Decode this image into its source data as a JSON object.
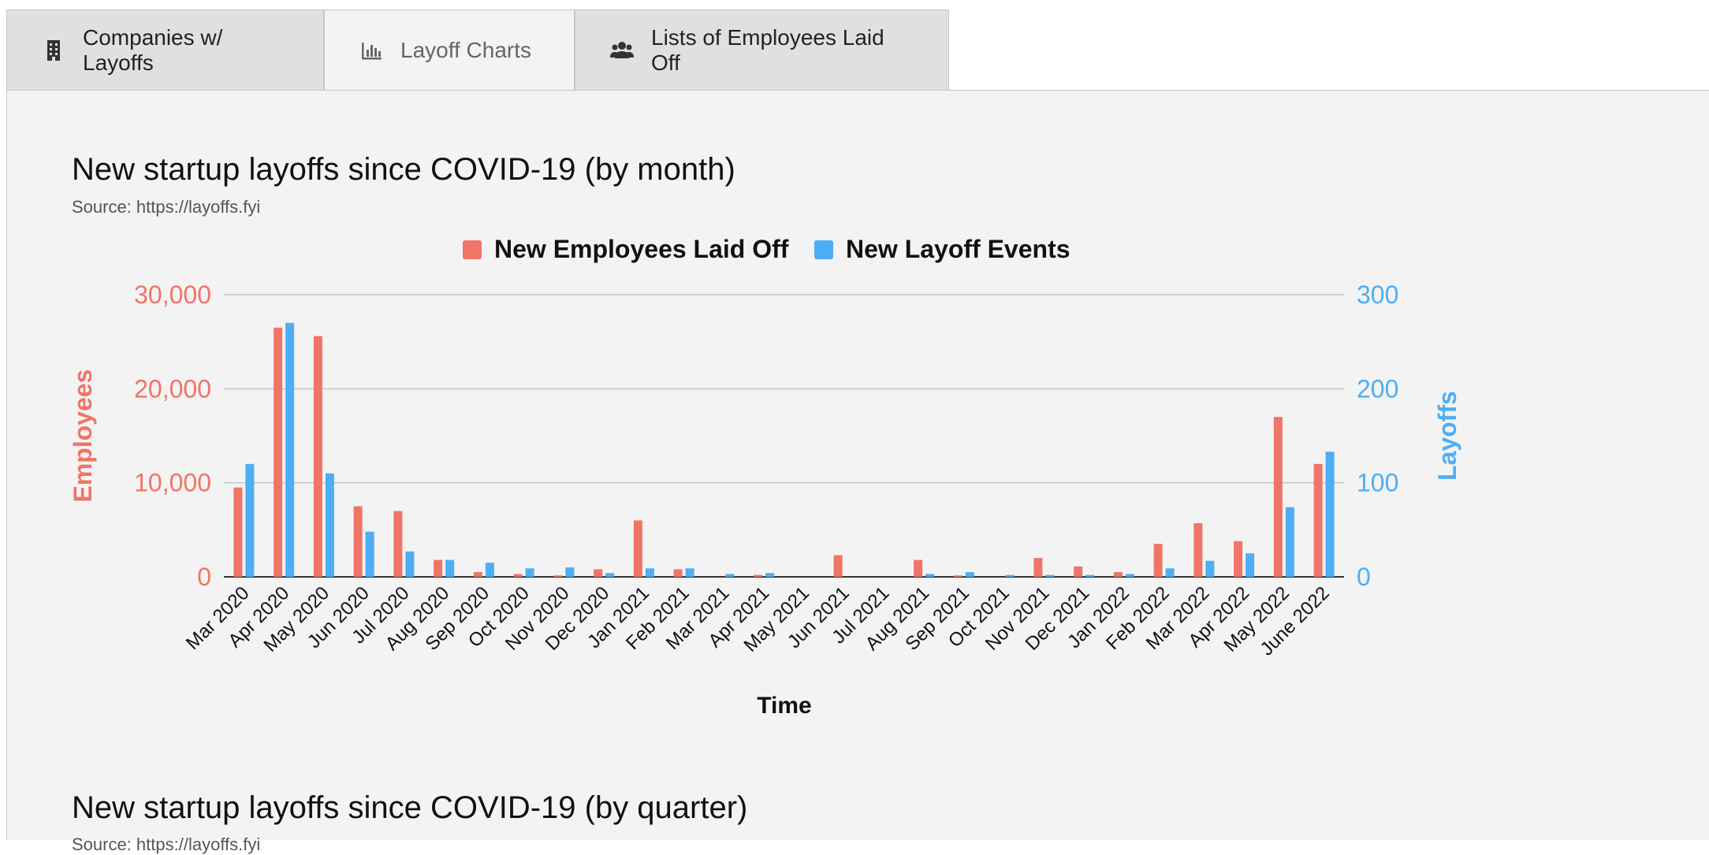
{
  "tabs": [
    {
      "label": "Companies w/ Layoffs",
      "icon": "building-icon",
      "active": false
    },
    {
      "label": "Layoff Charts",
      "icon": "bar-chart-icon",
      "active": true
    },
    {
      "label": "Lists of Employees Laid Off",
      "icon": "users-icon",
      "active": false
    }
  ],
  "section1": {
    "title": "New startup layoffs since COVID-19 (by month)",
    "source": "Source: https://layoffs.fyi"
  },
  "section2": {
    "title": "New startup layoffs since COVID-19 (by quarter)",
    "source": "Source: https://layoffs.fyi"
  },
  "colors": {
    "employees": "#f07467",
    "layoffs": "#4eaef4",
    "grid": "#c4c4c4"
  },
  "chart_data": {
    "type": "bar",
    "title": "New startup layoffs since COVID-19 (by month)",
    "xlabel": "Time",
    "categories": [
      "Mar 2020",
      "Apr 2020",
      "May 2020",
      "Jun 2020",
      "Jul 2020",
      "Aug 2020",
      "Sep 2020",
      "Oct 2020",
      "Nov 2020",
      "Dec 2020",
      "Jan 2021",
      "Feb 2021",
      "Mar 2021",
      "Apr 2021",
      "May 2021",
      "Jun 2021",
      "Jul 2021",
      "Aug 2021",
      "Sep 2021",
      "Oct 2021",
      "Nov 2021",
      "Dec 2021",
      "Jan 2022",
      "Feb 2022",
      "Mar 2022",
      "Apr 2022",
      "May 2022",
      "June 2022"
    ],
    "series": [
      {
        "name": "New Employees Laid Off",
        "axis": "left",
        "values": [
          9500,
          26500,
          25600,
          7500,
          7000,
          1800,
          500,
          300,
          150,
          800,
          6000,
          800,
          0,
          200,
          0,
          2300,
          0,
          1800,
          150,
          0,
          2000,
          1100,
          500,
          3500,
          5700,
          3800,
          17000,
          12000
        ]
      },
      {
        "name": "New Layoff Events",
        "axis": "right",
        "values": [
          120,
          270,
          110,
          48,
          27,
          18,
          15,
          9,
          10,
          4,
          9,
          9,
          3,
          4,
          0,
          0,
          0,
          3,
          5,
          2,
          2,
          2,
          3,
          9,
          17,
          25,
          74,
          133
        ]
      }
    ],
    "y_left": {
      "label": "Employees",
      "ylim": [
        0,
        30000
      ],
      "ticks": [
        "0",
        "10,000",
        "20,000",
        "30,000"
      ]
    },
    "y_right": {
      "label": "Layoffs",
      "ylim": [
        0,
        300
      ],
      "ticks": [
        "0",
        "100",
        "200",
        "300"
      ]
    },
    "legend": "top-center",
    "grid": true
  }
}
